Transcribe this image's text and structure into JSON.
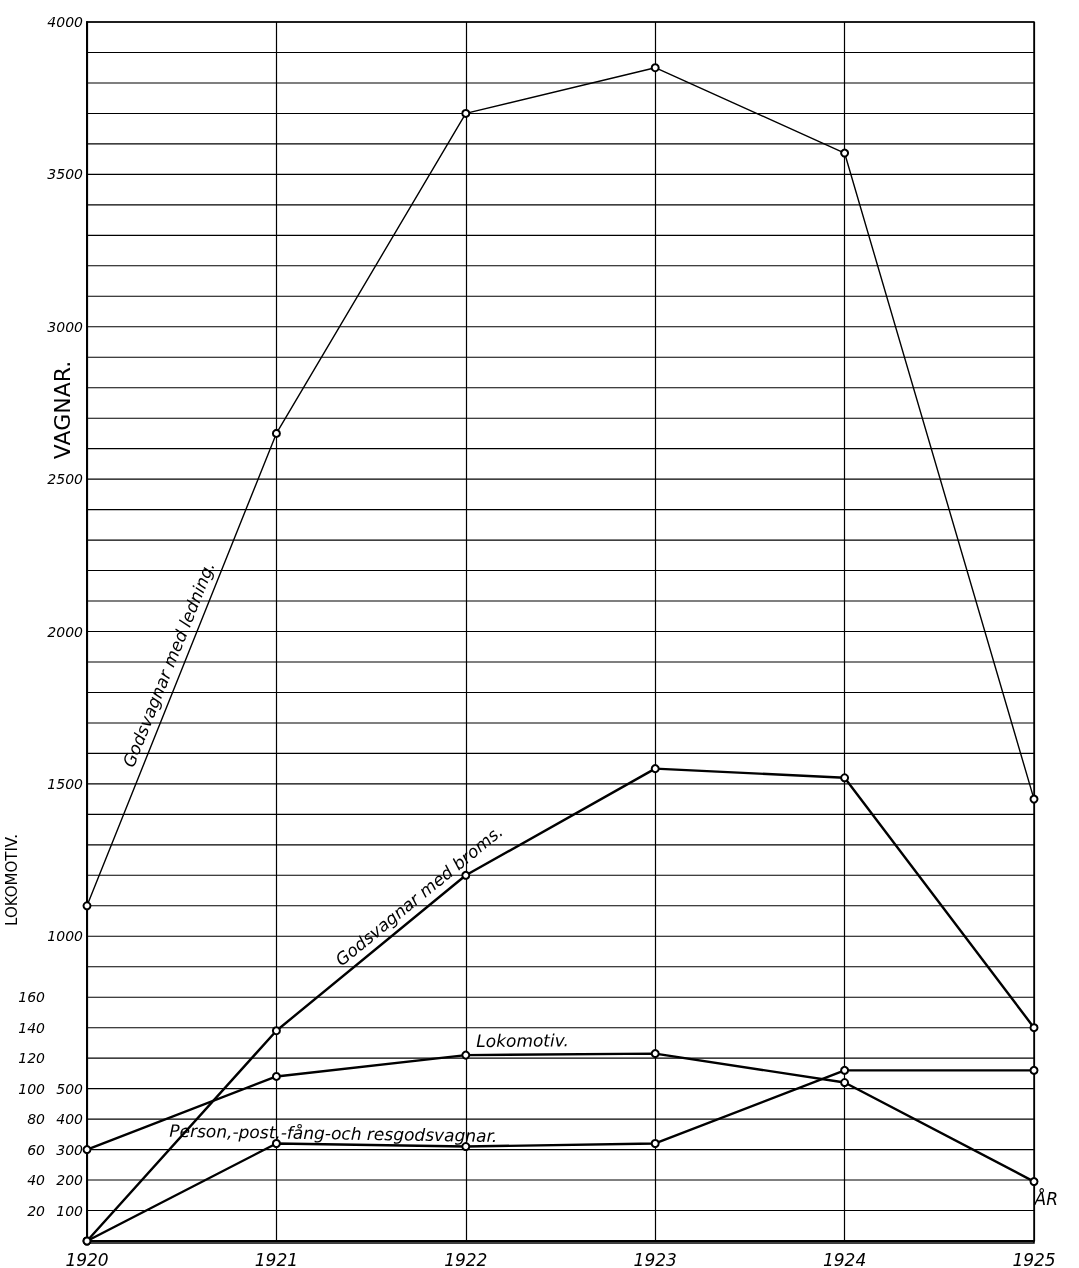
{
  "chart_data": {
    "type": "line",
    "categories": [
      "1920",
      "1921",
      "1922",
      "1923",
      "1924",
      "1925"
    ],
    "xlabel": "ÅR",
    "ylabel": "VAGNAR.",
    "y2label": "LOKOMOTIV.",
    "ylim": [
      0,
      4000
    ],
    "yticks": [
      {
        "value": 0,
        "label": null
      },
      100,
      200,
      300,
      400,
      500,
      {
        "value": 600,
        "label": null
      },
      {
        "value": 700,
        "label": null
      },
      {
        "value": 800,
        "label": null
      },
      {
        "value": 900,
        "label": null
      },
      1000,
      {
        "value": 1100,
        "label": null
      },
      {
        "value": 1200,
        "label": null
      },
      {
        "value": 1300,
        "label": null
      },
      {
        "value": 1400,
        "label": null
      },
      1500,
      {
        "value": 1600,
        "label": null
      },
      {
        "value": 1700,
        "label": null
      },
      {
        "value": 1800,
        "label": null
      },
      {
        "value": 1900,
        "label": null
      },
      2000,
      {
        "value": 2100,
        "label": null
      },
      {
        "value": 2200,
        "label": null
      },
      {
        "value": 2300,
        "label": null
      },
      {
        "value": 2400,
        "label": null
      },
      2500,
      {
        "value": 2600,
        "label": null
      },
      {
        "value": 2700,
        "label": null
      },
      {
        "value": 2800,
        "label": null
      },
      {
        "value": 2900,
        "label": null
      },
      3000,
      {
        "value": 3100,
        "label": null
      },
      {
        "value": 3200,
        "label": null
      },
      {
        "value": 3300,
        "label": null
      },
      {
        "value": 3400,
        "label": null
      },
      3500,
      {
        "value": 3600,
        "label": null
      },
      {
        "value": 3700,
        "label": null
      },
      {
        "value": 3800,
        "label": null
      },
      {
        "value": 3900,
        "label": null
      },
      4000
    ],
    "y2lim": [
      0,
      800
    ],
    "y2ticks": [
      20,
      40,
      60,
      80,
      100,
      120,
      140,
      160
    ],
    "grid": true,
    "marker": "circle",
    "line_style": "solid",
    "series": [
      {
        "name": "Godsvagnar med ledning.",
        "color": "#000000",
        "values": [
          1100,
          2650,
          3700,
          3850,
          3570,
          1450
        ]
      },
      {
        "name": "Godsvagnar med broms.",
        "color": "#000000",
        "values": [
          0,
          690,
          1200,
          1550,
          1520,
          700
        ]
      },
      {
        "name": "Lokomotiv.",
        "color": "#000000",
        "axis": "y2",
        "values": [
          60,
          108,
          122,
          123,
          104,
          39
        ]
      },
      {
        "name": "Person,-post,-fång-och resgodsvagnar.",
        "color": "#000000",
        "values": [
          0,
          320,
          310,
          320,
          560,
          560
        ]
      }
    ]
  }
}
